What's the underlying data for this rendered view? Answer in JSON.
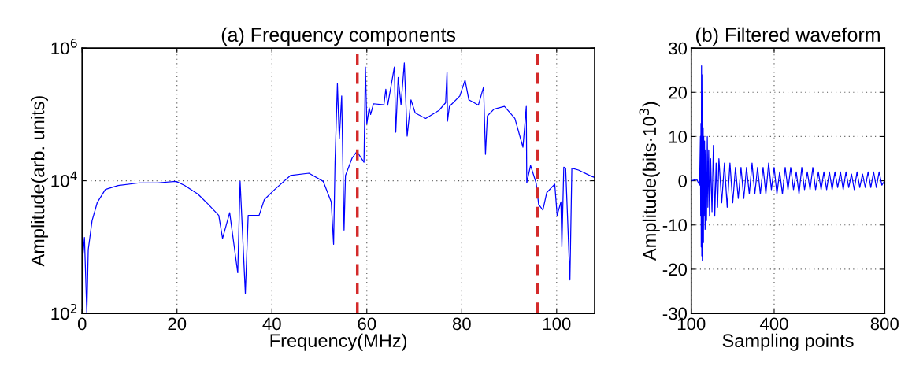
{
  "chart_data": [
    {
      "type": "line",
      "title": "(a) Frequency components",
      "xlabel": "Frequency(MHz)",
      "ylabel": "Amplitude(arb. units)",
      "log": "y",
      "grid": true,
      "xlim": [
        0,
        108
      ],
      "xticks": [
        0,
        20,
        40,
        60,
        80,
        100
      ],
      "ylim": [
        100,
        1000000
      ],
      "yticks": [
        {
          "value": 100,
          "label": "10$^{2}$"
        },
        {
          "value": 10000,
          "label": "10$^{4}$"
        },
        {
          "value": 1000000,
          "label": "10$^{6}$"
        }
      ],
      "ref_lines": [
        {
          "axis": "x",
          "value": 58,
          "color": "#d42a2a",
          "line_style": "dashed"
        },
        {
          "axis": "x",
          "value": 96,
          "color": "#d42a2a",
          "line_style": "dashed"
        }
      ],
      "series": [
        {
          "color": "#0000ff",
          "x": [
            0.2,
            0.5,
            1.0,
            1.3,
            2.1,
            3.2,
            4.9,
            7.6,
            12.1,
            15.9,
            19.8,
            21.6,
            24.4,
            26.6,
            28.8,
            29.6,
            31.1,
            32.8,
            33.3,
            34.4,
            35.0,
            37.3,
            38.4,
            40.6,
            43.9,
            47.8,
            50.8,
            52.5,
            53.0,
            53.3,
            53.8,
            54.2,
            54.7,
            55.2,
            55.5,
            56.9,
            57.8,
            58.0,
            59.4,
            59.7,
            60.0,
            60.5,
            60.8,
            61.4,
            63.6,
            64.0,
            64.4,
            65.8,
            66.1,
            66.6,
            67.2,
            67.9,
            68.5,
            69.3,
            70.2,
            72.4,
            75.2,
            76.6,
            76.9,
            77.0,
            77.4,
            79.6,
            80.7,
            81.5,
            83.5,
            84.6,
            85.0,
            85.4,
            86.8,
            89.0,
            91.2,
            92.9,
            93.6,
            93.7,
            94.5,
            95.7,
            96.2,
            97.1,
            97.9,
            99.6,
            100.1,
            100.9,
            101.1,
            101.5,
            101.9,
            102.8,
            103.2,
            104.6,
            107.3,
            108
          ],
          "values": [
            780,
            1400,
            100,
            910,
            2500,
            4700,
            7400,
            8500,
            9300,
            9300,
            9800,
            8500,
            6300,
            4400,
            3000,
            1350,
            3300,
            410,
            9800,
            200,
            3000,
            3000,
            5200,
            7400,
            12000,
            13000,
            9800,
            4800,
            1100,
            19000,
            290000,
            43000,
            190000,
            1800,
            12000,
            22000,
            27000,
            27000,
            19000,
            520000,
            72000,
            126000,
            100000,
            145000,
            140000,
            240000,
            138000,
            520000,
            54000,
            360000,
            140000,
            600000,
            47000,
            166000,
            105000,
            87000,
            115000,
            150000,
            440000,
            79000,
            132000,
            190000,
            330000,
            166000,
            138000,
            260000,
            25000,
            95000,
            120000,
            132000,
            87000,
            32000,
            132000,
            9300,
            17000,
            9100,
            4400,
            3600,
            6600,
            8900,
            3000,
            4800,
            1000,
            16000,
            15500,
            320,
            15500,
            14500,
            11700,
            11200
          ]
        }
      ]
    },
    {
      "type": "line",
      "title": "(b) Filtered waveform",
      "xlabel": "Sampling points",
      "ylabel": "Amplitude(bits·10$^{3}$)",
      "grid": true,
      "xlim": [
        100,
        800
      ],
      "xticks": [
        100,
        400,
        800
      ],
      "ylim": [
        -30,
        30
      ],
      "yticks": [
        -30,
        -20,
        -10,
        0,
        10,
        20,
        30
      ],
      "series": [
        {
          "color": "#0000ff",
          "x": [
            100,
            120,
            130,
            133,
            134,
            135,
            136,
            137,
            138,
            139,
            140,
            141,
            142,
            143,
            144,
            145,
            146,
            148,
            150,
            152,
            155,
            158,
            160,
            163,
            166,
            170,
            175,
            180,
            185,
            190,
            195,
            200,
            210,
            220,
            230,
            240,
            250,
            260,
            270,
            280,
            290,
            300,
            310,
            320,
            330,
            340,
            350,
            360,
            370,
            380,
            390,
            400,
            410,
            420,
            430,
            440,
            450,
            460,
            470,
            480,
            490,
            500,
            510,
            520,
            530,
            540,
            550,
            560,
            570,
            580,
            590,
            600,
            610,
            620,
            630,
            640,
            650,
            660,
            670,
            680,
            690,
            700,
            710,
            720,
            730,
            740,
            750,
            760,
            770,
            780,
            790,
            800
          ],
          "values": [
            0,
            0.3,
            -1,
            10,
            -8,
            13,
            -15,
            26,
            -17,
            20,
            -18,
            24,
            -10,
            12,
            -14,
            10,
            -8,
            9,
            -11,
            7,
            -9,
            10,
            -6,
            7,
            -8,
            5,
            -7,
            8,
            -8,
            4,
            -6,
            5,
            -5,
            4,
            -6,
            4,
            -5,
            3,
            -4,
            3,
            -4,
            3,
            -3,
            4,
            -3,
            3,
            -3,
            3,
            -3,
            4,
            -2,
            3,
            -3,
            2,
            -3,
            3,
            -2,
            3,
            -2,
            2,
            -3,
            3,
            -2,
            2,
            -2,
            3,
            -2,
            2,
            -2,
            2,
            -2,
            2,
            -2,
            2,
            -1.5,
            2,
            -2,
            2,
            -1.5,
            1.5,
            -2,
            2,
            -1.5,
            1.5,
            -1.5,
            2,
            -1.5,
            2,
            -1.5,
            2,
            -1,
            0
          ]
        }
      ]
    }
  ]
}
